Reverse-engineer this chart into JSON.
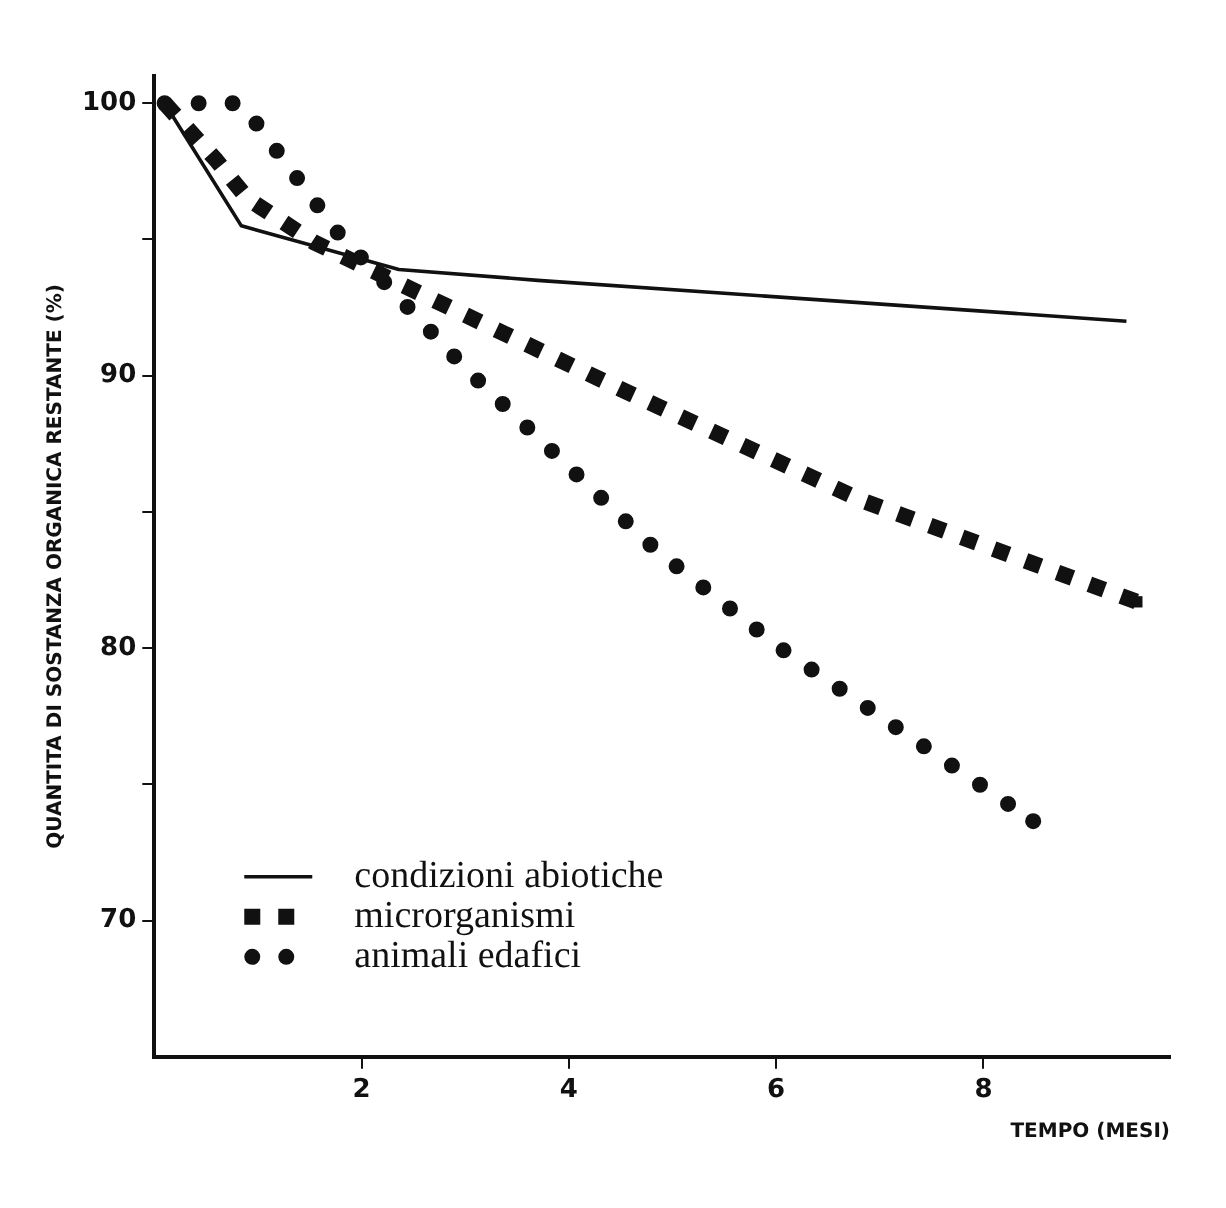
{
  "chart_data": {
    "type": "line",
    "xlabel": "TEMPO (MESI)",
    "ylabel": "QUANTITA DI SOSTANZA ORGANICA RESTANTE (%)",
    "xlim": [
      0,
      9.8
    ],
    "xticks": [
      2,
      4,
      6,
      8
    ],
    "ylim": [
      65,
      101
    ],
    "yticks": [
      {
        "value": 70,
        "label": "70"
      },
      {
        "value": 75,
        "label": null
      },
      {
        "value": 80,
        "label": "80"
      },
      {
        "value": 85,
        "label": null
      },
      {
        "value": 90,
        "label": "90"
      },
      {
        "value": 95,
        "label": null
      },
      {
        "value": 100,
        "label": "100"
      }
    ],
    "grid": false,
    "legend": "bottom left",
    "series": [
      {
        "name": "condizioni abiotiche",
        "color": "#111111",
        "line_style": "solid",
        "x": [
          0.1,
          0.84,
          2.36,
          3.7,
          9.38
        ],
        "values": [
          100,
          95.5,
          93.9,
          93.5,
          92.0
        ]
      },
      {
        "name": "microrganismi",
        "color": "#111111",
        "line_style": "dashed",
        "x": [
          0.1,
          0.6,
          0.9,
          1.54,
          2.3,
          4.56,
          6.84,
          9.48
        ],
        "values": [
          100,
          97.9,
          96.5,
          94.9,
          93.5,
          89.4,
          85.4,
          81.7
        ]
      },
      {
        "name": "animali edafici",
        "color": "#111111",
        "line_style": "dotted",
        "x": [
          0.1,
          0.84,
          1.78,
          3.02,
          4.84,
          6.04,
          8.48
        ],
        "values": [
          100,
          100,
          95.2,
          90.2,
          83.6,
          80,
          73.65
        ]
      }
    ]
  }
}
